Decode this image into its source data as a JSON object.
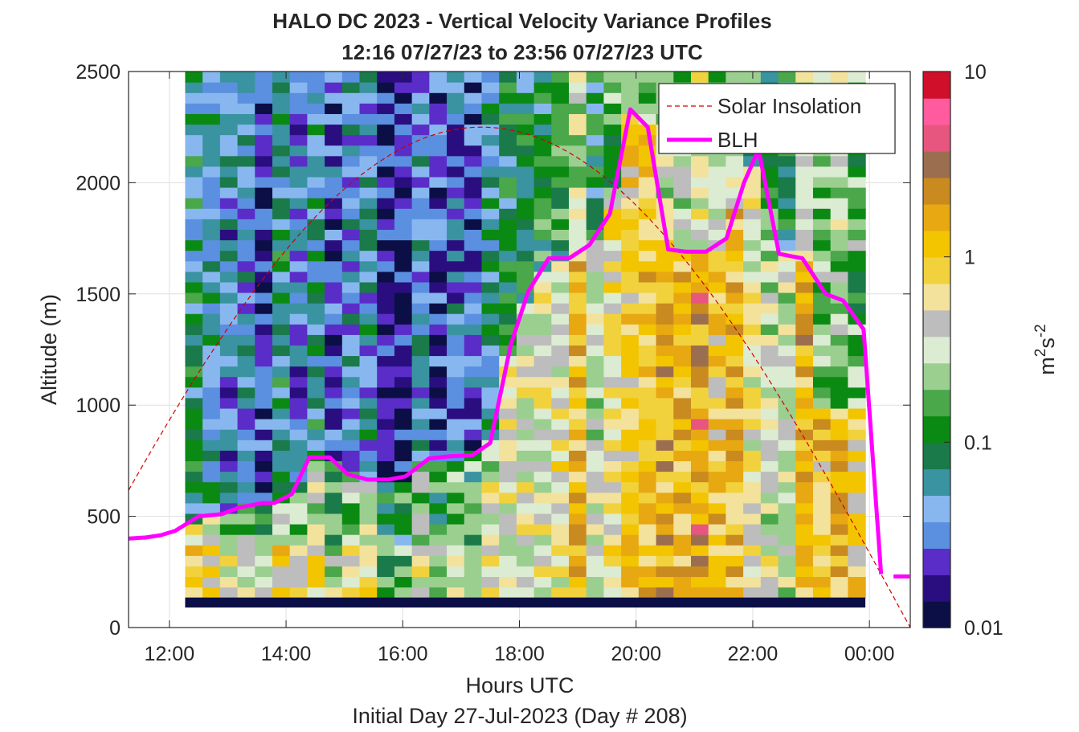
{
  "chart_data": {
    "type": "heatmap",
    "title": "HALO DC 2023 - Vertical Velocity Variance Profiles",
    "subtitle": "12:16 07/27/23 to 23:56 07/27/23  UTC",
    "xlabel": "Hours UTC",
    "xlabel2": "Initial Day 27-Jul-2023 (Day # 208)",
    "ylabel": "Altitude (m)",
    "xlim_hours": [
      11.3,
      24.7
    ],
    "ylim": [
      0,
      2500
    ],
    "x_ticks": [
      {
        "value": 12,
        "label": "12:00"
      },
      {
        "value": 14,
        "label": "14:00"
      },
      {
        "value": 16,
        "label": "16:00"
      },
      {
        "value": 18,
        "label": "18:00"
      },
      {
        "value": 20,
        "label": "20:00"
      },
      {
        "value": 22,
        "label": "22:00"
      },
      {
        "value": 24,
        "label": "00:00"
      }
    ],
    "y_ticks": [
      {
        "value": 0,
        "label": "0"
      },
      {
        "value": 500,
        "label": "500"
      },
      {
        "value": 1000,
        "label": "1000"
      },
      {
        "value": 1500,
        "label": "1500"
      },
      {
        "value": 2000,
        "label": "2000"
      },
      {
        "value": 2500,
        "label": "2500"
      }
    ],
    "grid": true,
    "colorbar": {
      "scale": "log",
      "range": [
        0.01,
        10
      ],
      "ticks": [
        {
          "value": 0.01,
          "label": "0.01"
        },
        {
          "value": 0.1,
          "label": "0.1"
        },
        {
          "value": 1,
          "label": "1"
        },
        {
          "value": 10,
          "label": "10"
        }
      ],
      "label_base": "m",
      "label_sup1": "2",
      "label_mid": "s",
      "label_sup2": "-2",
      "colormap": [
        "#0b0f45",
        "#2a0e80",
        "#5a2dc8",
        "#5b8fe0",
        "#88b7f0",
        "#3a93a0",
        "#1a7a4a",
        "#0a8a12",
        "#4aa74a",
        "#9bcf90",
        "#dcecd2",
        "#bdbdbd",
        "#f3e29c",
        "#f2d23c",
        "#f3c400",
        "#e8a812",
        "#c98a20",
        "#9c6e50",
        "#e7567e",
        "#ff5b9e",
        "#d0102a"
      ]
    },
    "variance_sections": [
      {
        "from_hour": 12.27,
        "to_hour": 17.6,
        "pattern": "low variance, mostly 0.01-0.1 above ~500 m, 0.1-0.5 near surface"
      },
      {
        "from_hour": 17.6,
        "to_hour": 23.9,
        "pattern": "high variance, mostly 0.5-2 below the BLH"
      }
    ],
    "data_start_hour": 12.27,
    "data_end_hour": 23.93,
    "bottom_gate_alt_m": [
      90,
      135
    ],
    "series": [
      {
        "name": "Solar Insolation",
        "style": "dashed",
        "color": "#d00000",
        "peak_hour": 17.25,
        "peak_alt_m": 2250,
        "sunrise_hour": 10.0,
        "sunset_hour": 24.7
      },
      {
        "name": "BLH",
        "style": "solid",
        "color": "#ff00ff",
        "x": [
          11.3,
          11.6,
          11.85,
          12.1,
          12.5,
          12.9,
          13.2,
          13.6,
          13.8,
          14.1,
          14.4,
          14.75,
          15.05,
          15.4,
          15.75,
          16.05,
          16.45,
          16.8,
          17.2,
          17.5,
          17.85,
          18.15,
          18.5,
          18.85,
          19.2,
          19.55,
          19.9,
          20.2,
          20.55,
          20.85,
          21.2,
          21.55,
          21.85,
          22.1,
          22.45,
          22.85,
          23.25,
          23.55,
          23.9,
          24.2
        ],
        "y": [
          400,
          405,
          415,
          435,
          500,
          510,
          540,
          560,
          560,
          600,
          765,
          765,
          690,
          665,
          665,
          680,
          760,
          770,
          775,
          830,
          1270,
          1510,
          1660,
          1660,
          1720,
          1860,
          2330,
          2250,
          1700,
          1690,
          1690,
          1750,
          2000,
          2150,
          1680,
          1660,
          1500,
          1470,
          1340,
          240
        ]
      }
    ],
    "blh_isolated_point": {
      "x": 24.55,
      "y": 230
    },
    "legend": {
      "position": "top-right"
    }
  }
}
